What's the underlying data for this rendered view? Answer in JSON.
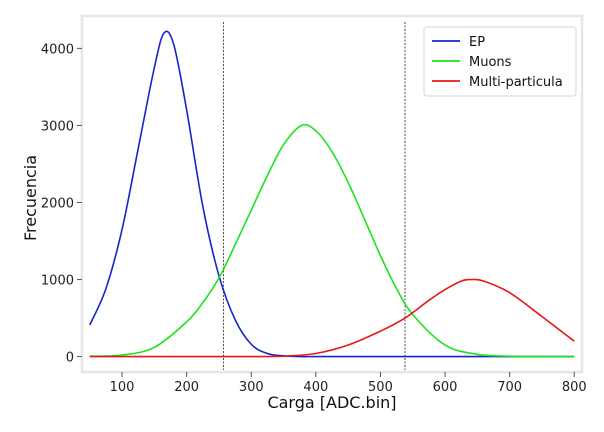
{
  "chart_data": {
    "type": "line",
    "xlabel": "Carga [ADC.bin]",
    "ylabel": "Frecuencia",
    "xlim": [
      38,
      812
    ],
    "ylim": [
      -200,
      4420
    ],
    "x_ticks": [
      100,
      200,
      300,
      400,
      500,
      600,
      700,
      800
    ],
    "y_ticks": [
      0,
      1000,
      2000,
      3000,
      4000
    ],
    "grid": false,
    "legend_position": "top-right",
    "vertical_lines": [
      257,
      538
    ],
    "series": [
      {
        "name": "EP",
        "color": "#1526c8",
        "x": [
          50,
          75,
          100,
          125,
          150,
          165,
          180,
          200,
          225,
          250,
          275,
          300,
          325,
          350,
          375,
          400,
          450,
          500,
          550,
          600,
          650,
          700,
          750,
          800
        ],
        "y": [
          410,
          880,
          1650,
          2700,
          3750,
          4200,
          4050,
          3200,
          1950,
          1050,
          480,
          160,
          40,
          10,
          0,
          0,
          0,
          0,
          0,
          0,
          0,
          0,
          0,
          0
        ]
      },
      {
        "name": "Muons",
        "color": "#19e619",
        "x": [
          50,
          100,
          150,
          200,
          225,
          250,
          275,
          300,
          325,
          350,
          378,
          400,
          425,
          450,
          475,
          500,
          525,
          550,
          600,
          650,
          700,
          750,
          800
        ],
        "y": [
          5,
          20,
          120,
          450,
          700,
          1020,
          1450,
          1900,
          2350,
          2750,
          3000,
          2930,
          2660,
          2260,
          1790,
          1310,
          880,
          545,
          150,
          30,
          5,
          0,
          0
        ]
      },
      {
        "name": "Multi-particula",
        "color": "#e61919",
        "x": [
          50,
          100,
          200,
          300,
          350,
          400,
          450,
          500,
          538,
          575,
          600,
          625,
          640,
          660,
          700,
          750,
          800
        ],
        "y": [
          0,
          0,
          0,
          0,
          5,
          40,
          150,
          330,
          500,
          730,
          870,
          980,
          1000,
          980,
          830,
          520,
          200
        ]
      }
    ]
  }
}
